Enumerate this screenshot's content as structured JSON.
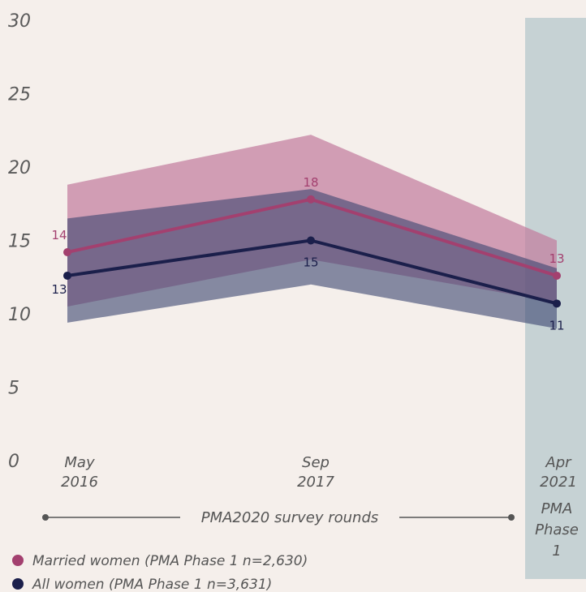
{
  "chart_data": {
    "type": "line",
    "categories": [
      [
        "May",
        "2016"
      ],
      [
        "Sep",
        "2017"
      ],
      [
        "Apr",
        "2021"
      ]
    ],
    "ylim": [
      0,
      30
    ],
    "yticks": [
      0,
      5,
      10,
      15,
      20,
      25,
      30
    ],
    "series": [
      {
        "name": "Married women (PMA Phase 1 n=2,630)",
        "color": "#a3406f",
        "band_color": "#c27a9c",
        "values": [
          14.2,
          17.8,
          12.6
        ],
        "value_labels": [
          "14",
          "18",
          "13"
        ],
        "upper": [
          18.8,
          22.2,
          15.0
        ],
        "lower": [
          10.5,
          13.7,
          10.8
        ]
      },
      {
        "name": "All women (PMA Phase 1 n=3,631)",
        "color": "#1b1f4b",
        "band_color": "#3a4470",
        "values": [
          12.6,
          15.0,
          10.7
        ],
        "value_labels": [
          "13",
          "15",
          "11"
        ],
        "upper": [
          16.5,
          18.5,
          13.1
        ],
        "lower": [
          9.4,
          12.0,
          9.0
        ]
      }
    ],
    "annotations": {
      "rounds": "PMA2020 survey rounds",
      "phase": [
        "PMA",
        "Phase",
        "1"
      ]
    }
  }
}
